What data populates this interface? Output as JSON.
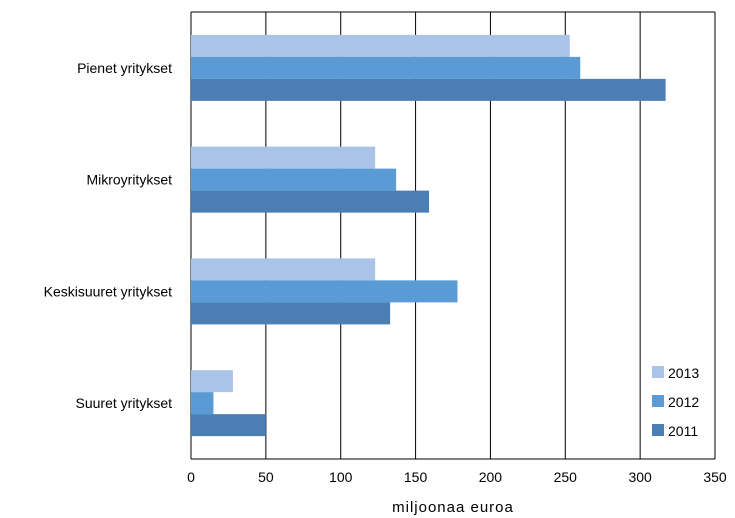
{
  "chart_data": {
    "type": "bar",
    "orientation": "horizontal",
    "categories": [
      "Pienet yritykset",
      "Mikroyritykset",
      "Keskisuuret yritykset",
      "Suuret yritykset"
    ],
    "series": [
      {
        "name": "2013",
        "color": "#a9c4e6",
        "values": [
          253,
          123,
          123,
          28
        ]
      },
      {
        "name": "2012",
        "color": "#5b9bd5",
        "values": [
          260,
          137,
          178,
          15
        ]
      },
      {
        "name": "2011",
        "color": "#4a7eb5",
        "values": [
          317,
          159,
          133,
          50
        ]
      }
    ],
    "xlabel": "miljoonaa euroa",
    "xlim": [
      0,
      350
    ],
    "xticks": [
      0,
      50,
      100,
      150,
      200,
      250,
      300,
      350
    ],
    "grid": "vertical",
    "legend_position": "bottom-right"
  }
}
